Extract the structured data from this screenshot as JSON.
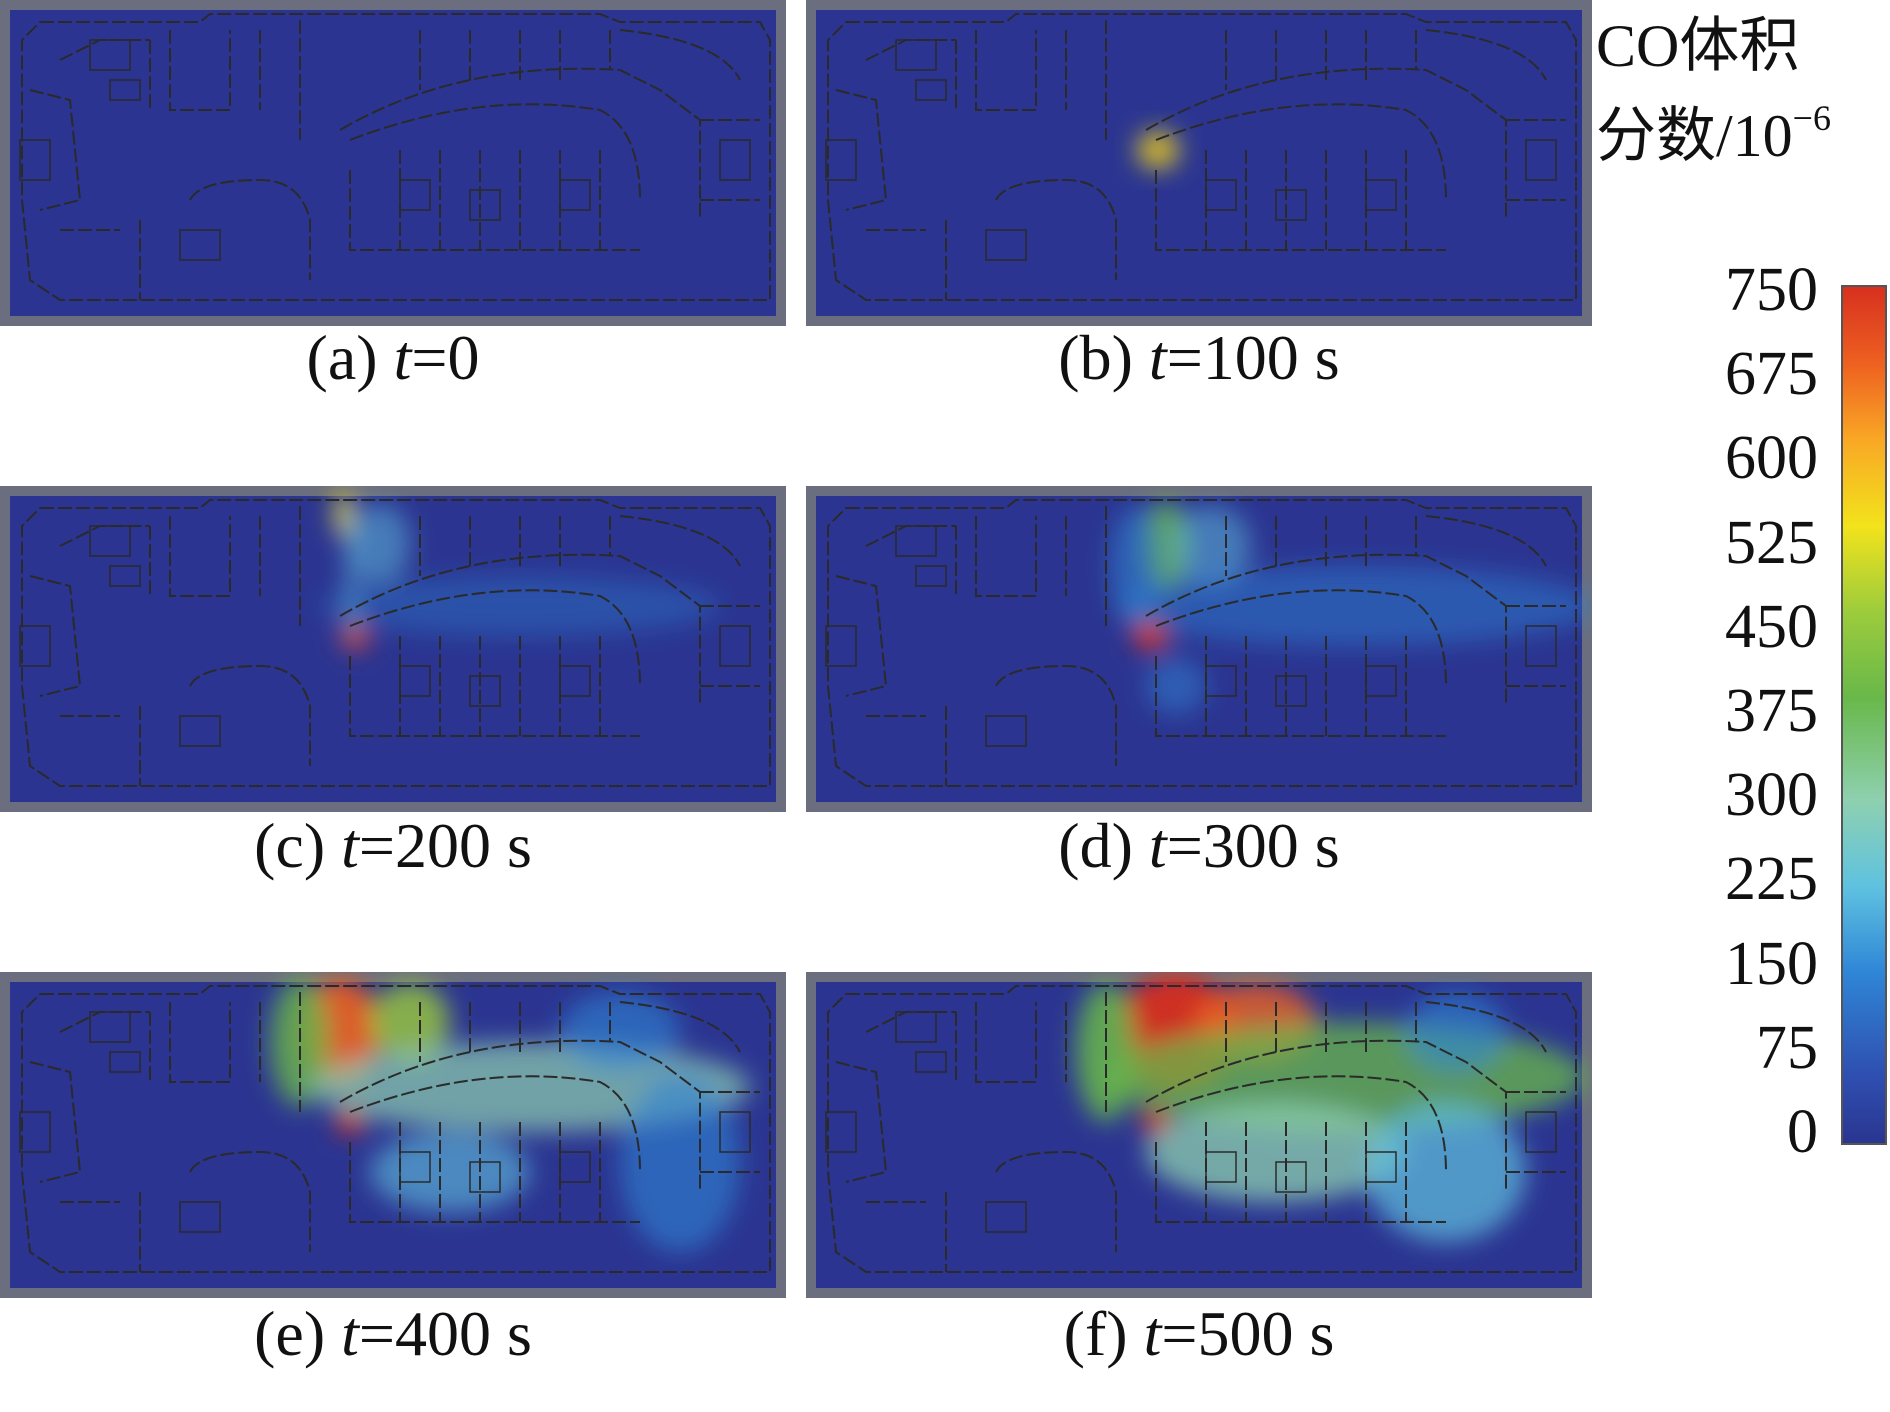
{
  "figure": {
    "legend": {
      "title_line1": "CO体积",
      "title_line2": "分数/10",
      "title_exponent": "−6",
      "ticks": [
        "750",
        "675",
        "600",
        "525",
        "450",
        "375",
        "300",
        "225",
        "150",
        "75",
        "0"
      ],
      "range": [
        0,
        750
      ],
      "colormap": [
        "#2a3590",
        "#2f4fb0",
        "#2f86d6",
        "#5fc2e0",
        "#8ed0b0",
        "#69b84a",
        "#9ccc3c",
        "#f2e31b",
        "#f9a825",
        "#ee6020",
        "#d7301f"
      ]
    },
    "panels": [
      {
        "label": "(a) ",
        "t": "t",
        "value": "=0",
        "time_s": 0
      },
      {
        "label": "(b) ",
        "t": "t",
        "value": "=100 s",
        "time_s": 100
      },
      {
        "label": "(c) ",
        "t": "t",
        "value": "=200 s",
        "time_s": 200
      },
      {
        "label": "(d) ",
        "t": "t",
        "value": "=300 s",
        "time_s": 300
      },
      {
        "label": "(e) ",
        "t": "t",
        "value": "=400 s",
        "time_s": 400
      },
      {
        "label": "(f) ",
        "t": "t",
        "value": "=500 s",
        "time_s": 500
      }
    ],
    "colors": {
      "background_blue": "#2b3591",
      "frame_gray": "#6b6e7e",
      "wall": "#2a2a2a"
    }
  }
}
